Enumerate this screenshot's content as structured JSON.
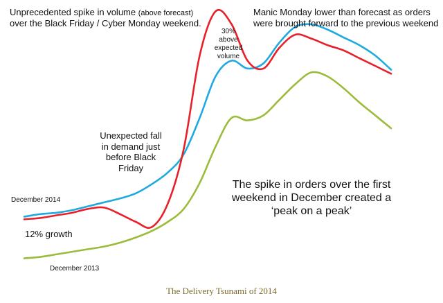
{
  "annotations": {
    "spike_main": "Unprecedented spike in volume",
    "spike_small": "(above forecast)",
    "spike_line2": "over the Black Friday / Cyber Monday weekend.",
    "manic_line1": "Manic Monday lower than forecast as orders",
    "manic_line2": "were brought forward to the previous weekend",
    "above_line1": "30%",
    "above_line2": "above",
    "above_line3": "expected",
    "above_line4": "volume",
    "fall_line1": "Unexpected fall",
    "fall_line2": "in demand just",
    "fall_line3": "before Black",
    "fall_line4": "Friday",
    "dec2014": "December 2014",
    "growth": "12% growth",
    "dec2013": "December 2013",
    "peak_line1": "The spike in orders over the first",
    "peak_line2": "weekend in December created a",
    "peak_line3": "‘peak on a peak’"
  },
  "caption": "The Delivery Tsunami of 2014",
  "chart_data": {
    "type": "line",
    "title": "",
    "xlabel": "",
    "ylabel": "",
    "axes_visible": false,
    "grid": false,
    "x": [
      0,
      1,
      2,
      3,
      4,
      5,
      6,
      7,
      8,
      9,
      10,
      11,
      12,
      13,
      14,
      15,
      16,
      17,
      18,
      19,
      20,
      21,
      22,
      23
    ],
    "xlim": [
      0,
      23
    ],
    "ylim": [
      0,
      100
    ],
    "series": [
      {
        "name": "December 2014",
        "color": "#e8202a",
        "values": [
          17,
          17.5,
          18.5,
          19.5,
          21,
          21.5,
          19,
          16,
          14,
          23,
          44,
          80,
          97,
          92,
          78,
          75,
          83,
          88,
          86.5,
          84,
          82,
          79,
          76,
          73
        ]
      },
      {
        "name": "forecast",
        "color": "#1eaadf",
        "values": [
          18,
          19,
          19.5,
          20.5,
          22,
          23.5,
          25,
          27,
          30.5,
          35,
          42,
          56,
          72,
          78,
          75,
          77,
          85,
          91,
          92,
          90,
          87,
          84,
          80,
          74.5
        ]
      },
      {
        "name": "December 2013",
        "color": "#9bbb3a",
        "values": [
          2,
          2.5,
          3.5,
          4.5,
          5.5,
          6.5,
          8,
          10,
          12.5,
          16,
          21,
          31,
          45,
          56,
          55,
          57,
          63,
          69,
          73.5,
          72,
          67.5,
          62,
          57,
          52
        ]
      }
    ]
  }
}
